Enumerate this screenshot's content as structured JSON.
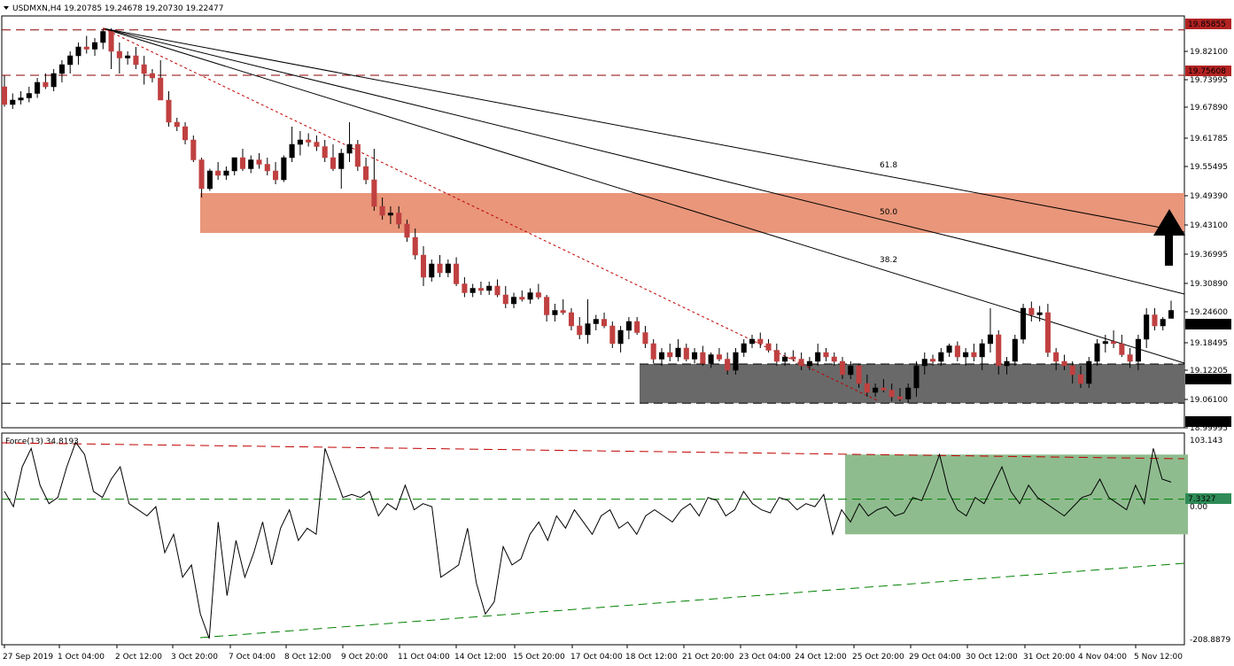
{
  "header": {
    "symbol_line": "USDMXN,H4  19.20785 19.24678 19.20730 19.22477",
    "indicator_line": "Force(13) 34.8193"
  },
  "chart_data": [
    {
      "type": "candlestick",
      "title": "USDMXN,H4",
      "ohlc_last": {
        "open": 19.20785,
        "high": 19.24678,
        "low": 19.2073,
        "close": 19.22477
      },
      "y_axis": {
        "range": [
          18.96,
          19.89
        ],
        "tick_labels": [
          "19.85855",
          "19.82100",
          "19.75608",
          "19.73995",
          "19.67890",
          "19.61785",
          "19.55495",
          "19.49390",
          "19.43100",
          "19.36995",
          "19.30890",
          "19.24600",
          "19.22477",
          "19.18495",
          "19.12205",
          "19.10406",
          "19.06100",
          "19.01549",
          "18.99995"
        ]
      },
      "x_axis": {
        "tick_labels": [
          "27 Sep 2019",
          "1 Oct 04:00",
          "2 Oct 12:00",
          "3 Oct 20:00",
          "7 Oct 04:00",
          "8 Oct 12:00",
          "9 Oct 20:00",
          "11 Oct 04:00",
          "14 Oct 12:00",
          "15 Oct 20:00",
          "17 Oct 04:00",
          "18 Oct 12:00",
          "21 Oct 20:00",
          "23 Oct 04:00",
          "24 Oct 12:00",
          "25 Oct 20:00",
          "29 Oct 04:00",
          "30 Oct 12:00",
          "31 Oct 20:00",
          "4 Nov 04:00",
          "5 Nov 12:00"
        ]
      },
      "horizontal_levels": [
        {
          "value": 19.85855,
          "label": "19.85855",
          "style": "dashed",
          "color": "#8b0000"
        },
        {
          "value": 19.75608,
          "label": "19.75608",
          "style": "dashed",
          "color": "#8b0000"
        },
        {
          "value": 19.10406,
          "label": "19.10406",
          "style": "dashed",
          "color": "#000000"
        },
        {
          "value": 19.01549,
          "label": "19.01549",
          "style": "dashed",
          "color": "#000000"
        }
      ],
      "fibonacci_fan": {
        "levels": [
          "38.2",
          "50.0",
          "61.8"
        ]
      },
      "zones": [
        {
          "name": "resistance",
          "from": 19.4,
          "to": 19.49,
          "color": "#e9967a"
        },
        {
          "name": "support",
          "from": 19.01549,
          "to": 19.10406,
          "color": "#696969"
        }
      ],
      "candles": [
        [
          19.73,
          19.755,
          19.685,
          19.69
        ],
        [
          19.69,
          19.715,
          19.68,
          19.7
        ],
        [
          19.7,
          19.72,
          19.69,
          19.705
        ],
        [
          19.705,
          19.73,
          19.695,
          19.715
        ],
        [
          19.715,
          19.75,
          19.705,
          19.74
        ],
        [
          19.74,
          19.76,
          19.725,
          19.73
        ],
        [
          19.73,
          19.77,
          19.72,
          19.76
        ],
        [
          19.76,
          19.79,
          19.74,
          19.78
        ],
        [
          19.78,
          19.81,
          19.76,
          19.8
        ],
        [
          19.8,
          19.83,
          19.78,
          19.82
        ],
        [
          19.82,
          19.845,
          19.805,
          19.815
        ],
        [
          19.815,
          19.84,
          19.8,
          19.83
        ],
        [
          19.83,
          19.86,
          19.815,
          19.855
        ],
        [
          19.855,
          19.862,
          19.77,
          19.81
        ],
        [
          19.81,
          19.83,
          19.76,
          19.795
        ],
        [
          19.795,
          19.81,
          19.78,
          19.8
        ],
        [
          19.8,
          19.82,
          19.77,
          19.78
        ],
        [
          19.78,
          19.8,
          19.735,
          19.76
        ],
        [
          19.76,
          19.77,
          19.74,
          19.75
        ],
        [
          19.75,
          19.79,
          19.7,
          19.7
        ],
        [
          19.7,
          19.72,
          19.64,
          19.65
        ],
        [
          19.65,
          19.66,
          19.63,
          19.64
        ],
        [
          19.64,
          19.65,
          19.6,
          19.61
        ],
        [
          19.61,
          19.62,
          19.56,
          19.565
        ],
        [
          19.565,
          19.57,
          19.48,
          19.5
        ],
        [
          19.5,
          19.545,
          19.495,
          19.54
        ],
        [
          19.54,
          19.56,
          19.52,
          19.53
        ],
        [
          19.53,
          19.55,
          19.52,
          19.54
        ],
        [
          19.54,
          19.57,
          19.53,
          19.57
        ],
        [
          19.57,
          19.59,
          19.54,
          19.545
        ],
        [
          19.545,
          19.575,
          19.535,
          19.565
        ],
        [
          19.565,
          19.58,
          19.545,
          19.555
        ],
        [
          19.555,
          19.57,
          19.53,
          19.54
        ],
        [
          19.54,
          19.56,
          19.51,
          19.52
        ],
        [
          19.52,
          19.575,
          19.515,
          19.57
        ],
        [
          19.57,
          19.64,
          19.56,
          19.6
        ],
        [
          19.6,
          19.63,
          19.575,
          19.61
        ],
        [
          19.61,
          19.625,
          19.595,
          19.605
        ],
        [
          19.605,
          19.62,
          19.585,
          19.595
        ],
        [
          19.595,
          19.61,
          19.56,
          19.57
        ],
        [
          19.57,
          19.6,
          19.54,
          19.545
        ],
        [
          19.545,
          19.59,
          19.5,
          19.58
        ],
        [
          19.58,
          19.65,
          19.56,
          19.6
        ],
        [
          19.6,
          19.61,
          19.54,
          19.55
        ],
        [
          19.55,
          19.57,
          19.51,
          19.52
        ],
        [
          19.52,
          19.59,
          19.45,
          19.46
        ],
        [
          19.46,
          19.48,
          19.43,
          19.44
        ],
        [
          19.44,
          19.46,
          19.42,
          19.445
        ],
        [
          19.445,
          19.46,
          19.41,
          19.42
        ],
        [
          19.42,
          19.43,
          19.38,
          19.39
        ],
        [
          19.39,
          19.41,
          19.34,
          19.35
        ],
        [
          19.35,
          19.37,
          19.28,
          19.3
        ],
        [
          19.3,
          19.34,
          19.29,
          19.33
        ],
        [
          19.33,
          19.35,
          19.3,
          19.31
        ],
        [
          19.31,
          19.34,
          19.3,
          19.33
        ],
        [
          19.33,
          19.345,
          19.28,
          19.285
        ],
        [
          19.285,
          19.3,
          19.255,
          19.265
        ],
        [
          19.265,
          19.285,
          19.255,
          19.275
        ],
        [
          19.275,
          19.29,
          19.26,
          19.27
        ],
        [
          19.27,
          19.29,
          19.26,
          19.28
        ],
        [
          19.28,
          19.295,
          19.255,
          19.26
        ],
        [
          19.26,
          19.28,
          19.23,
          19.24
        ],
        [
          19.24,
          19.265,
          19.23,
          19.255
        ],
        [
          19.255,
          19.27,
          19.245,
          19.25
        ],
        [
          19.25,
          19.275,
          19.24,
          19.265
        ],
        [
          19.265,
          19.285,
          19.25,
          19.255
        ],
        [
          19.255,
          19.26,
          19.2,
          19.215
        ],
        [
          19.215,
          19.24,
          19.2,
          19.225
        ],
        [
          19.225,
          19.25,
          19.215,
          19.22
        ],
        [
          19.22,
          19.23,
          19.18,
          19.19
        ],
        [
          19.19,
          19.21,
          19.16,
          19.17
        ],
        [
          19.17,
          19.25,
          19.15,
          19.195
        ],
        [
          19.195,
          19.215,
          19.18,
          19.205
        ],
        [
          19.205,
          19.22,
          19.185,
          19.19
        ],
        [
          19.19,
          19.2,
          19.14,
          19.15
        ],
        [
          19.15,
          19.19,
          19.13,
          19.18
        ],
        [
          19.18,
          19.21,
          19.16,
          19.2
        ],
        [
          19.2,
          19.21,
          19.17,
          19.175
        ],
        [
          19.175,
          19.19,
          19.14,
          19.15
        ],
        [
          19.15,
          19.16,
          19.105,
          19.115
        ],
        [
          19.115,
          19.14,
          19.1,
          19.13
        ],
        [
          19.13,
          19.15,
          19.11,
          19.12
        ],
        [
          19.12,
          19.16,
          19.11,
          19.14
        ],
        [
          19.14,
          19.15,
          19.11,
          19.115
        ],
        [
          19.115,
          19.14,
          19.105,
          19.13
        ],
        [
          19.13,
          19.145,
          19.1,
          19.105
        ],
        [
          19.105,
          19.13,
          19.095,
          19.125
        ],
        [
          19.125,
          19.14,
          19.11,
          19.115
        ],
        [
          19.115,
          19.13,
          19.08,
          19.09
        ],
        [
          19.09,
          19.14,
          19.08,
          19.13
        ],
        [
          19.13,
          19.16,
          19.12,
          19.15
        ],
        [
          19.15,
          19.17,
          19.14,
          19.16
        ],
        [
          19.16,
          19.175,
          19.14,
          19.15
        ],
        [
          19.15,
          19.16,
          19.13,
          19.135
        ],
        [
          19.135,
          19.15,
          19.1,
          19.11
        ],
        [
          19.11,
          19.13,
          19.1,
          19.12
        ],
        [
          19.12,
          19.135,
          19.11,
          19.115
        ],
        [
          19.115,
          19.13,
          19.09,
          19.1
        ],
        [
          19.1,
          19.12,
          19.09,
          19.11
        ],
        [
          19.11,
          19.15,
          19.1,
          19.13
        ],
        [
          19.13,
          19.14,
          19.11,
          19.12
        ],
        [
          19.12,
          19.13,
          19.1,
          19.11
        ],
        [
          19.11,
          19.12,
          19.07,
          19.08
        ],
        [
          19.08,
          19.11,
          19.07,
          19.1
        ],
        [
          19.1,
          19.105,
          19.05,
          19.06
        ],
        [
          19.06,
          19.08,
          19.03,
          19.04
        ],
        [
          19.04,
          19.06,
          19.03,
          19.05
        ],
        [
          19.05,
          19.07,
          19.04,
          19.045
        ],
        [
          19.045,
          19.06,
          19.02,
          19.03
        ],
        [
          19.03,
          19.05,
          19.02,
          19.025
        ],
        [
          19.025,
          19.06,
          19.015,
          19.05
        ],
        [
          19.05,
          19.11,
          19.03,
          19.1
        ],
        [
          19.1,
          19.13,
          19.08,
          19.115
        ],
        [
          19.115,
          19.125,
          19.1,
          19.11
        ],
        [
          19.11,
          19.14,
          19.1,
          19.13
        ],
        [
          19.13,
          19.15,
          19.12,
          19.145
        ],
        [
          19.145,
          19.155,
          19.11,
          19.12
        ],
        [
          19.12,
          19.14,
          19.1,
          19.13
        ],
        [
          19.13,
          19.15,
          19.11,
          19.12
        ],
        [
          19.12,
          19.16,
          19.09,
          19.15
        ],
        [
          19.15,
          19.23,
          19.13,
          19.17
        ],
        [
          19.17,
          19.18,
          19.08,
          19.1
        ],
        [
          19.1,
          19.12,
          19.08,
          19.11
        ],
        [
          19.11,
          19.17,
          19.1,
          19.16
        ],
        [
          19.16,
          19.24,
          19.15,
          19.23
        ],
        [
          19.23,
          19.245,
          19.2,
          19.215
        ],
        [
          19.215,
          19.235,
          19.2,
          19.22
        ],
        [
          19.22,
          19.24,
          19.12,
          19.13
        ],
        [
          19.13,
          19.14,
          19.09,
          19.11
        ],
        [
          19.11,
          19.125,
          19.09,
          19.1
        ],
        [
          19.1,
          19.11,
          19.06,
          19.08
        ],
        [
          19.08,
          19.1,
          19.05,
          19.06
        ],
        [
          19.06,
          19.12,
          19.05,
          19.11
        ],
        [
          19.11,
          19.16,
          19.1,
          19.15
        ],
        [
          19.15,
          19.17,
          19.13,
          19.155
        ],
        [
          19.155,
          19.18,
          19.14,
          19.15
        ],
        [
          19.15,
          19.17,
          19.12,
          19.125
        ],
        [
          19.125,
          19.14,
          19.095,
          19.11
        ],
        [
          19.11,
          19.17,
          19.09,
          19.16
        ],
        [
          19.16,
          19.23,
          19.14,
          19.215
        ],
        [
          19.215,
          19.23,
          19.18,
          19.19
        ],
        [
          19.19,
          19.21,
          19.18,
          19.205
        ],
        [
          19.207,
          19.247,
          19.207,
          19.225
        ]
      ]
    },
    {
      "type": "line",
      "title": "Force(13) 34.8193",
      "y_axis": {
        "range": [
          -230,
          115
        ],
        "tick_labels": [
          "103.143",
          "7.3327",
          "0.00",
          "-208.8879"
        ]
      },
      "horizontal_levels": [
        {
          "value": 7.3327,
          "label": "7.3327",
          "style": "dashed",
          "color": "#008000"
        }
      ],
      "zones": [
        {
          "name": "force-zone",
          "from": -50,
          "to": 80,
          "color": "#8fbc8f"
        }
      ],
      "series": [
        {
          "values": [
            20,
            -5,
            60,
            90,
            30,
            0,
            10,
            60,
            100,
            80,
            20,
            10,
            40,
            60,
            0,
            -10,
            -20,
            -5,
            -80,
            -50,
            -120,
            -100,
            -180,
            -220,
            -30,
            -150,
            -60,
            -120,
            -80,
            -30,
            -100,
            -40,
            -10,
            -60,
            -40,
            -50,
            90,
            50,
            10,
            15,
            10,
            20,
            -20,
            0,
            -10,
            30,
            -10,
            0,
            -5,
            -120,
            -110,
            -100,
            -40,
            -130,
            -180,
            -160,
            -70,
            -100,
            -90,
            -50,
            -30,
            -60,
            -20,
            -40,
            -10,
            -30,
            -50,
            -20,
            -10,
            -40,
            -30,
            -50,
            -20,
            -10,
            -20,
            -30,
            -10,
            0,
            -20,
            10,
            5,
            -20,
            -10,
            20,
            0,
            -10,
            -15,
            10,
            5,
            -10,
            0,
            -5,
            15,
            -50,
            -10,
            -30,
            0,
            -20,
            -10,
            -5,
            -20,
            -15,
            10,
            5,
            40,
            80,
            20,
            -10,
            -20,
            10,
            0,
            30,
            60,
            20,
            0,
            30,
            10,
            0,
            -10,
            -20,
            -5,
            10,
            15,
            40,
            10,
            0,
            -10,
            30,
            0,
            90,
            40,
            35
          ]
        }
      ]
    }
  ]
}
